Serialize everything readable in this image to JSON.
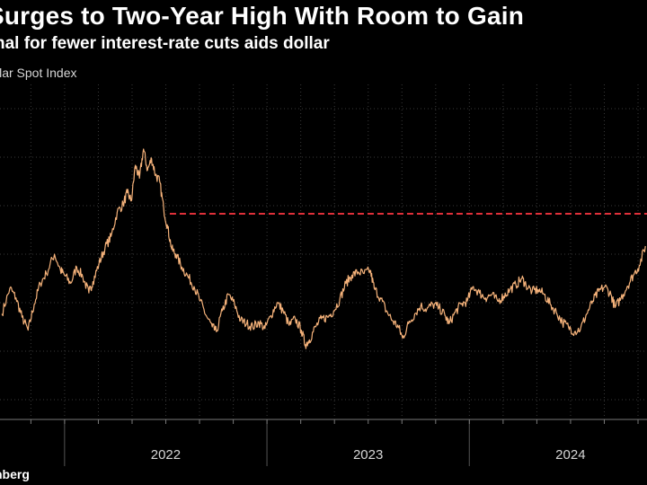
{
  "header": {
    "title": "Surges to Two-Year High With Room to Gain",
    "subtitle": "nal for fewer interest-rate cuts aids dollar",
    "ylabel": "llar Spot Index"
  },
  "footer": {
    "source": "nberg"
  },
  "colors": {
    "background": "#000000",
    "line": "#f5b27a",
    "reference": "#e0303a",
    "grid": "#3a3a3a",
    "text": "#ffffff"
  },
  "chart_data": {
    "type": "line",
    "title": "Surges to Two-Year High With Room to Gain",
    "subtitle": "nal for fewer interest-rate cuts aids dollar",
    "ylabel": "llar Spot Index",
    "x_ticks": [
      {
        "label": "2022",
        "at": 2022.5
      },
      {
        "label": "2023",
        "at": 2023.5
      },
      {
        "label": "2024",
        "at": 2024.5
      }
    ],
    "x_range": [
      2021.681,
      2024.878
    ],
    "y_range": [
      1165,
      1370
    ],
    "y_gridlines": [
      1175,
      1205,
      1235,
      1265,
      1295,
      1325,
      1355
    ],
    "y_tick_labels_visible": false,
    "grid": true,
    "series": [
      {
        "name": "",
        "points": [
          [
            2021.69,
            1228
          ],
          [
            2021.73,
            1244
          ],
          [
            2021.76,
            1238
          ],
          [
            2021.79,
            1226
          ],
          [
            2021.82,
            1218
          ],
          [
            2021.85,
            1234
          ],
          [
            2021.88,
            1247
          ],
          [
            2021.91,
            1253
          ],
          [
            2021.95,
            1265
          ],
          [
            2021.98,
            1255
          ],
          [
            2022.0,
            1252
          ],
          [
            2022.03,
            1247
          ],
          [
            2022.06,
            1257
          ],
          [
            2022.09,
            1251
          ],
          [
            2022.12,
            1241
          ],
          [
            2022.14,
            1248
          ],
          [
            2022.17,
            1259
          ],
          [
            2022.2,
            1269
          ],
          [
            2022.23,
            1276
          ],
          [
            2022.26,
            1291
          ],
          [
            2022.29,
            1296
          ],
          [
            2022.31,
            1303
          ],
          [
            2022.33,
            1298
          ],
          [
            2022.35,
            1320
          ],
          [
            2022.37,
            1312
          ],
          [
            2022.39,
            1330
          ],
          [
            2022.41,
            1317
          ],
          [
            2022.43,
            1324
          ],
          [
            2022.45,
            1314
          ],
          [
            2022.47,
            1310
          ],
          [
            2022.49,
            1293
          ],
          [
            2022.51,
            1281
          ],
          [
            2022.53,
            1268
          ],
          [
            2022.55,
            1265
          ],
          [
            2022.58,
            1257
          ],
          [
            2022.61,
            1251
          ],
          [
            2022.64,
            1245
          ],
          [
            2022.67,
            1236
          ],
          [
            2022.7,
            1227
          ],
          [
            2022.73,
            1220
          ],
          [
            2022.75,
            1217
          ],
          [
            2022.78,
            1230
          ],
          [
            2022.81,
            1240
          ],
          [
            2022.84,
            1234
          ],
          [
            2022.87,
            1224
          ],
          [
            2022.9,
            1222
          ],
          [
            2022.93,
            1220
          ],
          [
            2022.96,
            1223
          ],
          [
            2022.99,
            1219
          ],
          [
            2023.02,
            1227
          ],
          [
            2023.05,
            1235
          ],
          [
            2023.08,
            1230
          ],
          [
            2023.11,
            1221
          ],
          [
            2023.14,
            1225
          ],
          [
            2023.17,
            1218
          ],
          [
            2023.19,
            1209
          ],
          [
            2023.21,
            1212
          ],
          [
            2023.24,
            1220
          ],
          [
            2023.27,
            1225
          ],
          [
            2023.3,
            1226
          ],
          [
            2023.33,
            1230
          ],
          [
            2023.36,
            1237
          ],
          [
            2023.39,
            1247
          ],
          [
            2023.42,
            1252
          ],
          [
            2023.45,
            1254
          ],
          [
            2023.48,
            1253
          ],
          [
            2023.51,
            1255
          ],
          [
            2023.53,
            1244
          ],
          [
            2023.56,
            1238
          ],
          [
            2023.59,
            1230
          ],
          [
            2023.62,
            1224
          ],
          [
            2023.65,
            1220
          ],
          [
            2023.67,
            1213
          ],
          [
            2023.7,
            1222
          ],
          [
            2023.73,
            1228
          ],
          [
            2023.76,
            1233
          ],
          [
            2023.79,
            1231
          ],
          [
            2023.82,
            1234
          ],
          [
            2023.85,
            1232
          ],
          [
            2023.88,
            1227
          ],
          [
            2023.9,
            1222
          ],
          [
            2023.93,
            1229
          ],
          [
            2023.96,
            1234
          ],
          [
            2023.99,
            1236
          ],
          [
            2024.02,
            1245
          ],
          [
            2024.05,
            1241
          ],
          [
            2024.08,
            1238
          ],
          [
            2024.11,
            1240
          ],
          [
            2024.14,
            1236
          ],
          [
            2024.17,
            1239
          ],
          [
            2024.2,
            1243
          ],
          [
            2024.23,
            1246
          ],
          [
            2024.26,
            1250
          ],
          [
            2024.28,
            1246
          ],
          [
            2024.31,
            1242
          ],
          [
            2024.34,
            1243
          ],
          [
            2024.37,
            1240
          ],
          [
            2024.4,
            1234
          ],
          [
            2024.43,
            1229
          ],
          [
            2024.46,
            1223
          ],
          [
            2024.49,
            1220
          ],
          [
            2024.52,
            1217
          ],
          [
            2024.55,
            1219
          ],
          [
            2024.58,
            1228
          ],
          [
            2024.61,
            1236
          ],
          [
            2024.64,
            1242
          ],
          [
            2024.67,
            1245
          ],
          [
            2024.7,
            1240
          ],
          [
            2024.72,
            1232
          ],
          [
            2024.75,
            1238
          ],
          [
            2024.78,
            1245
          ],
          [
            2024.81,
            1252
          ],
          [
            2024.84,
            1258
          ],
          [
            2024.87,
            1270
          ]
        ]
      }
    ],
    "reference_line": {
      "y": 1290,
      "x_start": 2022.52,
      "style": "dashed"
    }
  }
}
